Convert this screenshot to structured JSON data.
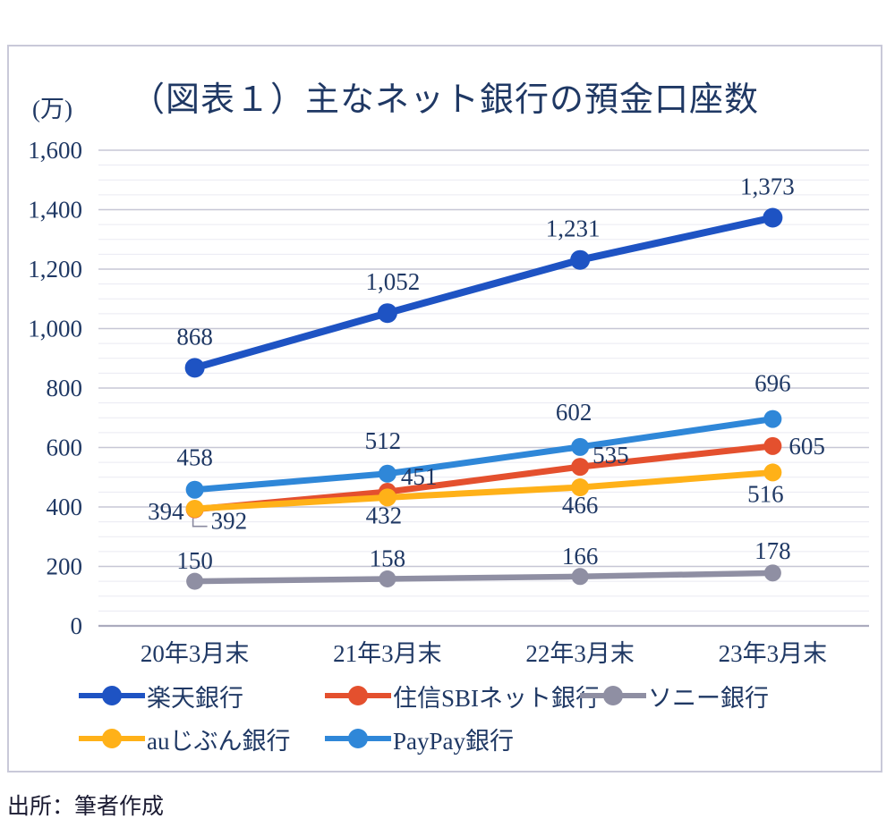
{
  "chart": {
    "title": "（図表１）主なネット銀行の預金口座数",
    "unit_label": "(万)",
    "source": "出所：筆者作成"
  },
  "chart_data": {
    "type": "line",
    "title": "（図表１）主なネット銀行の預金口座数",
    "y_unit": "万",
    "categories": [
      "20年3月末",
      "21年3月末",
      "22年3月末",
      "23年3月末"
    ],
    "ylim": [
      0,
      1600
    ],
    "y_major_step": 200,
    "y_minor_step": 50,
    "y_ticks": [
      "0",
      "200",
      "400",
      "600",
      "800",
      "1,000",
      "1,200",
      "1,400",
      "1,600"
    ],
    "grid": true,
    "legend_position": "bottom",
    "text_color": "#1f3864",
    "grid_minor_color": "#eaeaf2",
    "grid_major_color": "#c7c7d5",
    "axis_line_color": "#ababbe",
    "series": [
      {
        "key": "rakuten",
        "name": "楽天銀行",
        "color": "#1e53c3",
        "values": [
          868,
          1052,
          1231,
          1373
        ],
        "labels": [
          "868",
          "1,052",
          "1,231",
          "1,373"
        ],
        "label_offsets": [
          [
            0,
            -26,
            "middle"
          ],
          [
            6,
            -26,
            "middle"
          ],
          [
            -8,
            -26,
            "middle"
          ],
          [
            -6,
            -26,
            "middle"
          ]
        ],
        "leader_points": []
      },
      {
        "key": "sbi",
        "name": "住信SBIネット銀行",
        "color": "#e4502e",
        "values": [
          392,
          451,
          535,
          605
        ],
        "labels": [
          "392",
          "451",
          "535",
          "605"
        ],
        "label_offsets": [
          [
            18,
            22,
            "start"
          ],
          [
            15,
            -8,
            "start"
          ],
          [
            14,
            -4,
            "start"
          ],
          [
            18,
            9,
            "start"
          ]
        ],
        "leader_points": [
          0
        ]
      },
      {
        "key": "sony",
        "name": "ソニー銀行",
        "color": "#8f8fa3",
        "values": [
          150,
          158,
          166,
          178
        ],
        "labels": [
          "150",
          "158",
          "166",
          "178"
        ],
        "label_offsets": [
          [
            0,
            -14,
            "middle"
          ],
          [
            0,
            -14,
            "middle"
          ],
          [
            0,
            -14,
            "middle"
          ],
          [
            0,
            -16,
            "middle"
          ]
        ],
        "leader_points": []
      },
      {
        "key": "au",
        "name": "auじぶん銀行",
        "color": "#ffb118",
        "values": [
          394,
          432,
          466,
          516
        ],
        "labels": [
          "394",
          "432",
          "466",
          "516"
        ],
        "label_offsets": [
          [
            -12,
            12,
            "end"
          ],
          [
            -4,
            29,
            "middle"
          ],
          [
            0,
            29,
            "middle"
          ],
          [
            -8,
            33,
            "middle"
          ]
        ],
        "leader_points": []
      },
      {
        "key": "paypay",
        "name": "PayPay銀行",
        "color": "#2f87d8",
        "values": [
          458,
          512,
          602,
          696
        ],
        "labels": [
          "458",
          "512",
          "602",
          "696"
        ],
        "label_offsets": [
          [
            0,
            -27,
            "middle"
          ],
          [
            -5,
            -28,
            "middle"
          ],
          [
            -7,
            -30,
            "middle"
          ],
          [
            0,
            -31,
            "middle"
          ]
        ],
        "leader_points": []
      }
    ],
    "legend_rows": [
      [
        0,
        1,
        2
      ],
      [
        3,
        4
      ]
    ]
  }
}
